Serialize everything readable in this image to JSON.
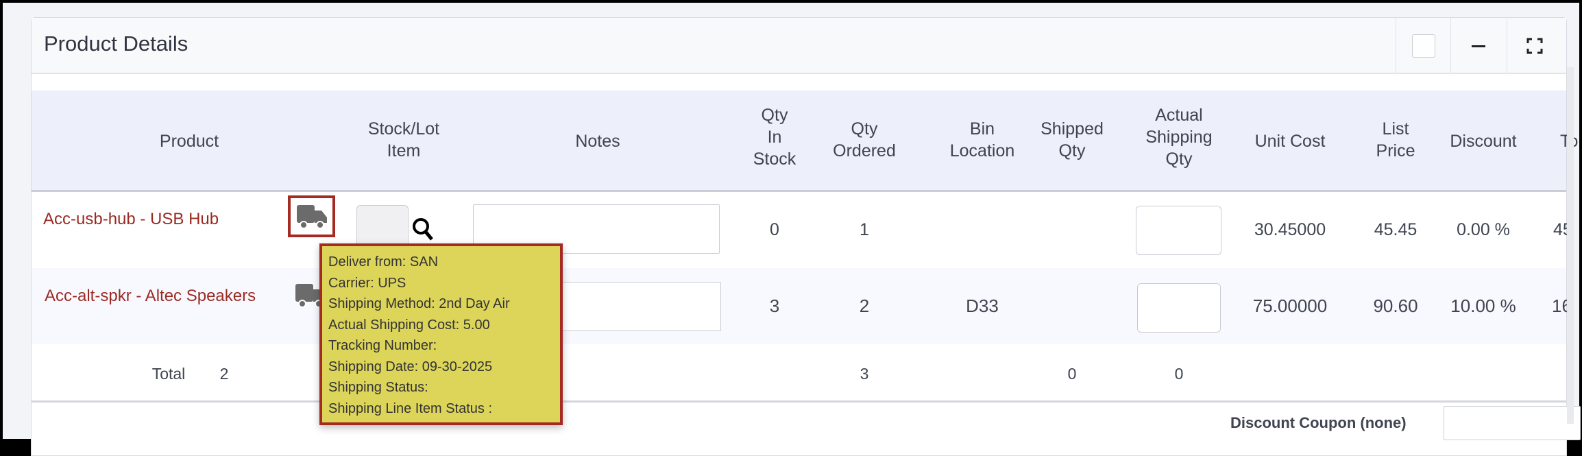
{
  "panel": {
    "title": "Product Details",
    "controls": [
      "checkbox-square-icon",
      "minimize-icon",
      "expand-icon"
    ]
  },
  "table": {
    "headers": [
      {
        "l1": "Product"
      },
      {
        "l1": "Stock/Lot",
        "l2": "Item"
      },
      {
        "l1": "Notes"
      },
      {
        "l1": "Qty",
        "l2": "In",
        "l3": "Stock"
      },
      {
        "l1": "Qty",
        "l2": "Ordered"
      },
      {
        "l1": "Bin",
        "l2": "Location"
      },
      {
        "l1": "Shipped",
        "l2": "Qty"
      },
      {
        "l1": "Actual",
        "l2": "Shipping",
        "l3": "Qty"
      },
      {
        "l1": "Unit Cost"
      },
      {
        "l1": "List",
        "l2": "Price"
      },
      {
        "l1": "Discount"
      },
      {
        "l1": "To"
      }
    ],
    "rows": [
      {
        "product": "Acc-usb-hub - USB Hub",
        "qty_in_stock": "0",
        "qty_ordered": "1",
        "bin": "",
        "unit_cost": "30.45000",
        "list_price": "45.45",
        "discount": "0.00 %",
        "total": "45"
      },
      {
        "product": "Acc-alt-spkr - Altec Speakers",
        "qty_in_stock": "3",
        "qty_ordered": "2",
        "bin": "D33",
        "unit_cost": "75.00000",
        "list_price": "90.60",
        "discount": "10.00 %",
        "total": "16"
      }
    ],
    "total": {
      "label": "Total",
      "count": "2",
      "qty_ordered": "3",
      "shipped": "0",
      "actual": "0"
    }
  },
  "discount_coupon": "Discount Coupon (none)",
  "tooltip": [
    "Deliver from: SAN",
    "Carrier: UPS",
    "Shipping Method: 2nd Day Air",
    "Actual Shipping Cost: 5.00",
    "Tracking Number:",
    "Shipping Date: 09-30-2025",
    "Shipping Status:",
    "Shipping Line Item Status :"
  ],
  "colors": {
    "link": "#9a2b24",
    "tooltip_bg": "#dcd55a",
    "tooltip_border": "#a52a22",
    "header_bg": "#edeffa"
  }
}
